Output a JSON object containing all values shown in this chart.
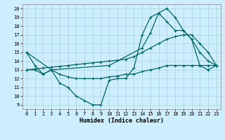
{
  "title": "",
  "xlabel": "Humidex (Indice chaleur)",
  "bg_color": "#cceeff",
  "line_color": "#006666",
  "xlim": [
    -0.5,
    23.5
  ],
  "ylim": [
    8.5,
    20.5
  ],
  "xticks": [
    0,
    1,
    2,
    3,
    4,
    5,
    6,
    7,
    8,
    9,
    10,
    11,
    12,
    13,
    14,
    15,
    16,
    17,
    18,
    19,
    20,
    21,
    22,
    23
  ],
  "yticks": [
    9,
    10,
    11,
    12,
    13,
    14,
    15,
    16,
    17,
    18,
    19,
    20
  ],
  "series": [
    {
      "x": [
        0,
        1,
        2,
        3,
        4,
        5,
        6,
        7,
        8,
        9,
        10,
        11,
        12,
        13,
        14,
        15,
        16,
        17,
        18,
        19,
        20,
        21,
        22,
        23
      ],
      "y": [
        15,
        13.5,
        12.5,
        13,
        11.5,
        11,
        10,
        9.5,
        9,
        9,
        11.8,
        12,
        12,
        13.2,
        17,
        19,
        19.5,
        20,
        19,
        17.5,
        16.5,
        15,
        14,
        13.5
      ]
    },
    {
      "x": [
        0,
        1,
        2,
        3,
        4,
        5,
        6,
        7,
        8,
        9,
        10,
        11,
        12,
        13,
        14,
        15,
        16,
        17,
        18,
        19,
        20,
        21,
        22,
        23
      ],
      "y": [
        13,
        13,
        12.5,
        13,
        12.5,
        12.2,
        12,
        12,
        12,
        12,
        12.2,
        12.3,
        12.5,
        12.5,
        12.8,
        13,
        13.2,
        13.5,
        13.5,
        13.5,
        13.5,
        13.5,
        13.5,
        13.5
      ]
    },
    {
      "x": [
        0,
        1,
        2,
        3,
        4,
        5,
        6,
        7,
        8,
        9,
        10,
        11,
        12,
        13,
        14,
        15,
        16,
        17,
        18,
        19,
        20,
        21,
        22,
        23
      ],
      "y": [
        13,
        13.1,
        13.2,
        13.3,
        13.4,
        13.5,
        13.6,
        13.7,
        13.8,
        13.9,
        14,
        14.1,
        14.2,
        14.5,
        15,
        15.5,
        16,
        16.5,
        16.8,
        17,
        17,
        16,
        15,
        13.5
      ]
    },
    {
      "x": [
        0,
        3,
        10,
        14,
        15,
        16,
        17,
        18,
        19,
        20,
        21,
        22,
        23
      ],
      "y": [
        15,
        13,
        13.5,
        15.5,
        17.2,
        19.5,
        18.5,
        17.5,
        17.5,
        16.5,
        13.5,
        13,
        13.5
      ]
    }
  ]
}
